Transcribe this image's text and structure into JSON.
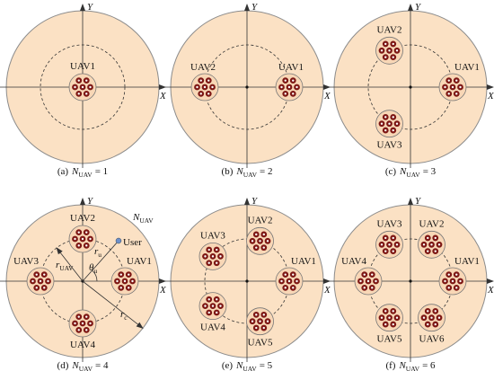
{
  "panels": [
    {
      "caption": {
        "tag": "(a)",
        "symbol": "N",
        "subscript": "UAV",
        "equals": "= 1"
      },
      "axis_x": "X",
      "axis_y": "Y",
      "uavs": [
        "UAV1"
      ]
    },
    {
      "caption": {
        "tag": "(b)",
        "symbol": "N",
        "subscript": "UAV",
        "equals": "= 2"
      },
      "axis_x": "X",
      "axis_y": "Y",
      "uavs": [
        "UAV1",
        "UAV2"
      ]
    },
    {
      "caption": {
        "tag": "(c)",
        "symbol": "N",
        "subscript": "UAV",
        "equals": "= 3"
      },
      "axis_x": "X",
      "axis_y": "Y",
      "uavs": [
        "UAV1",
        "UAV2",
        "UAV3"
      ]
    },
    {
      "caption": {
        "tag": "(d)",
        "symbol": "N",
        "subscript": "UAV",
        "equals": "= 4"
      },
      "axis_x": "X",
      "axis_y": "Y",
      "uavs": [
        "UAV1",
        "UAV2",
        "UAV3",
        "UAV4"
      ]
    },
    {
      "caption": {
        "tag": "(e)",
        "symbol": "N",
        "subscript": "UAV",
        "equals": "= 5"
      },
      "axis_x": "X",
      "axis_y": "Y",
      "uavs": [
        "UAV1",
        "UAV2",
        "UAV3",
        "UAV4",
        "UAV5"
      ]
    },
    {
      "caption": {
        "tag": "(f)",
        "symbol": "N",
        "subscript": "UAV",
        "equals": "= 6"
      },
      "axis_x": "X",
      "axis_y": "Y",
      "uavs": [
        "UAV1",
        "UAV2",
        "UAV3",
        "UAV4",
        "UAV5",
        "UAV6"
      ]
    }
  ],
  "annotations": {
    "n_uav": {
      "symbol": "N",
      "subscript": "UAV"
    },
    "user": "User",
    "r_u": {
      "symbol": "r",
      "subscript": "u"
    },
    "theta_u": {
      "symbol": "θ",
      "subscript": "u"
    },
    "r_uav": {
      "symbol": "r",
      "subscript": "UAV"
    },
    "r_c": {
      "symbol": "r",
      "subscript": "c"
    }
  }
}
